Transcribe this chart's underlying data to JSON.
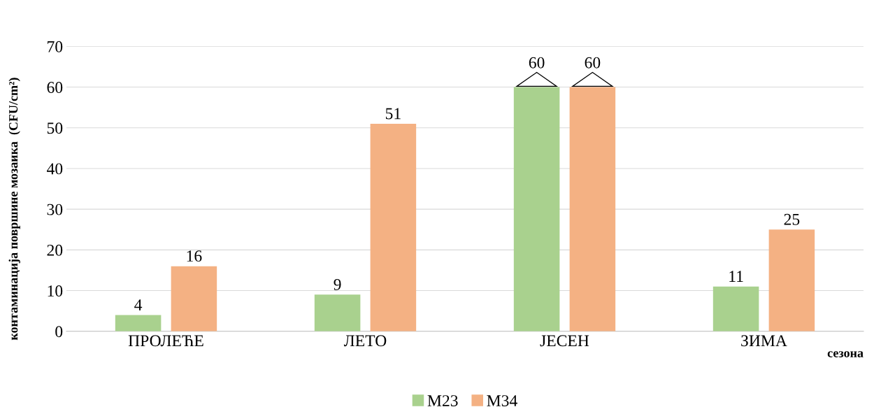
{
  "chart_data": {
    "type": "bar",
    "ylabel": "контаминација површине мозаика  (CFU/cm²)",
    "xlabel": "сезона",
    "categories": [
      "ПРОЛЕЋЕ",
      "ЛЕТО",
      "ЈЕСЕН",
      "ЗИМА"
    ],
    "series": [
      {
        "name": "M23",
        "color": "#a9d18e",
        "values": [
          4,
          9,
          60,
          11
        ]
      },
      {
        "name": "M34",
        "color": "#f4b183",
        "values": [
          16,
          51,
          60,
          25
        ]
      }
    ],
    "ylim": [
      0,
      70
    ],
    "yticks": [
      0,
      10,
      20,
      30,
      40,
      50,
      60,
      70
    ],
    "grid": "y",
    "legend": "bottom",
    "data_labels": true
  }
}
